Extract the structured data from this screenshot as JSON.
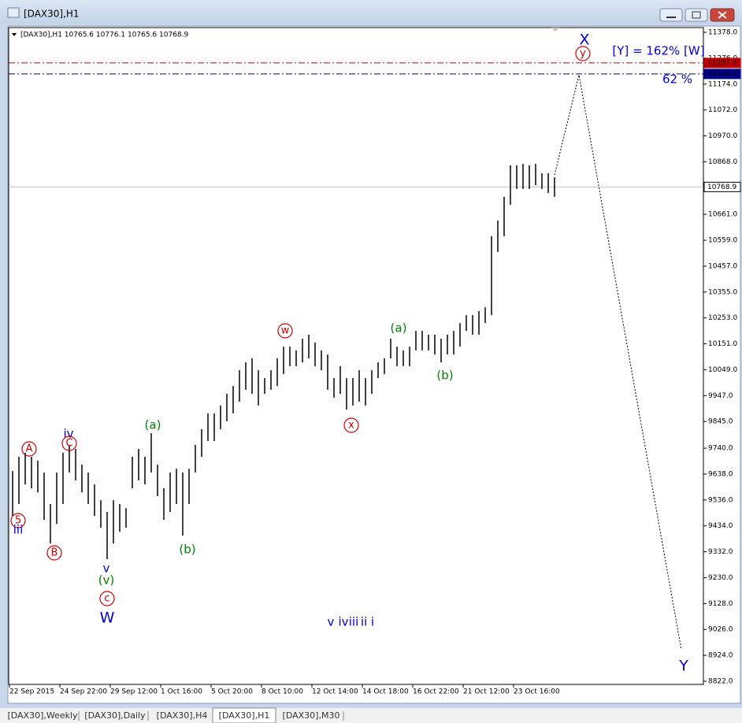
{
  "window_title": "[DAX30],H1",
  "tabs": [
    "[DAX30],Weekly",
    "[DAX30],Daily",
    "[DAX30],H4",
    "[DAX30],H1",
    "[DAX30],M30"
  ],
  "active_tab": 3,
  "chart_data": {
    "type": "ohlc",
    "title": "[DAX30],H1  10765.6 10776.1 10765.6 10768.9",
    "color": "#000000",
    "categories": [
      "22 Sep 2015",
      null,
      null,
      null,
      null,
      null,
      null,
      null,
      "24 Sep 22:00",
      null,
      null,
      null,
      null,
      null,
      null,
      null,
      "29 Sep 12:00",
      null,
      null,
      null,
      null,
      null,
      null,
      null,
      "1 Oct 16:00",
      null,
      null,
      null,
      null,
      null,
      null,
      null,
      "5 Oct 20:00",
      null,
      null,
      null,
      null,
      null,
      null,
      null,
      "8 Oct 10:00",
      null,
      null,
      null,
      null,
      null,
      null,
      null,
      "12 Oct 14:00",
      null,
      null,
      null,
      null,
      null,
      null,
      null,
      "14 Oct 18:00",
      null,
      null,
      null,
      null,
      null,
      null,
      null,
      "16 Oct 22:00",
      null,
      null,
      null,
      null,
      null,
      null,
      null,
      "21 Oct 12:00",
      null,
      null,
      null,
      null,
      null,
      null,
      null,
      "23 Oct 16:00",
      null,
      null,
      null,
      null,
      null,
      null
    ],
    "high": [
      9650,
      9706,
      9722,
      9706,
      9691,
      9644,
      9520,
      9644,
      9722,
      9753,
      9737,
      9675,
      9644,
      9597,
      9535,
      9489,
      9535,
      9520,
      9504,
      9706,
      9737,
      9706,
      9799,
      9675,
      9582,
      9644,
      9659,
      9644,
      9659,
      9753,
      9815,
      9877,
      9877,
      9908,
      9954,
      9985,
      10047,
      10078,
      10094,
      10047,
      10016,
      10047,
      10094,
      10140,
      10140,
      10125,
      10171,
      10187,
      10156,
      10125,
      10109,
      10016,
      10063,
      10016,
      10016,
      10047,
      10016,
      10047,
      10078,
      10094,
      10171,
      10140,
      10125,
      10140,
      10202,
      10202,
      10187,
      10187,
      10171,
      10187,
      10202,
      10233,
      10264,
      10264,
      10280,
      10295,
      10575,
      10637,
      10730,
      10854,
      10854,
      10860,
      10854,
      10860,
      10823,
      10823,
      10807
    ],
    "low": [
      9473,
      9520,
      9597,
      9582,
      9566,
      9458,
      9365,
      9442,
      9520,
      9644,
      9613,
      9566,
      9520,
      9473,
      9427,
      9303,
      9365,
      9411,
      9427,
      9582,
      9613,
      9597,
      9644,
      9551,
      9458,
      9489,
      9520,
      9396,
      9520,
      9644,
      9706,
      9768,
      9768,
      9815,
      9846,
      9877,
      9923,
      9970,
      9954,
      9908,
      9954,
      9970,
      9985,
      10032,
      10063,
      10063,
      10078,
      10094,
      10063,
      10047,
      9970,
      9939,
      9954,
      9892,
      9908,
      9923,
      9908,
      9954,
      10016,
      10032,
      10094,
      10063,
      10063,
      10063,
      10125,
      10125,
      10125,
      10109,
      10078,
      10109,
      10109,
      10140,
      10202,
      10187,
      10187,
      10233,
      10264,
      10513,
      10575,
      10699,
      10761,
      10761,
      10761,
      10776,
      10761,
      10745,
      10730
    ],
    "ylim": [
      8822,
      11378
    ],
    "yticks": [
      {
        "value": 11378,
        "label": "11378.0"
      },
      {
        "value": 11276,
        "label": "11276.0"
      },
      {
        "value": 11174,
        "label": "11174.0"
      },
      {
        "value": 11072,
        "label": "11072.0"
      },
      {
        "value": 10970,
        "label": "10970.0"
      },
      {
        "value": 10868,
        "label": "10868.0"
      },
      {
        "value": 10661,
        "label": "10661.0"
      },
      {
        "value": 10559,
        "label": "10559.0"
      },
      {
        "value": 10457,
        "label": "10457.0"
      },
      {
        "value": 10355,
        "label": "10355.0"
      },
      {
        "value": 10253,
        "label": "10253.0"
      },
      {
        "value": 10151,
        "label": "10151.0"
      },
      {
        "value": 10049,
        "label": "10049.0"
      },
      {
        "value": 9947,
        "label": "9947.0"
      },
      {
        "value": 9845,
        "label": "9845.0"
      },
      {
        "value": 9740,
        "label": "9740.0"
      },
      {
        "value": 9638,
        "label": "9638.0"
      },
      {
        "value": 9536,
        "label": "9536.0"
      },
      {
        "value": 9434,
        "label": "9434.0"
      },
      {
        "value": 9332,
        "label": "9332.0"
      },
      {
        "value": 9230,
        "label": "9230.0"
      },
      {
        "value": 9128,
        "label": "9128.0"
      },
      {
        "value": 9026,
        "label": "9026.0"
      },
      {
        "value": 8924,
        "label": "8924.0"
      },
      {
        "value": 8822,
        "label": "8822.0"
      }
    ],
    "levels": [
      {
        "value": 11257.3,
        "color": "#c00000",
        "style": "dash-dot"
      },
      {
        "value": {
          "value": 11214,
          "label": "11214.0"
        },
        "color": "#00008b",
        "style": "dash-dot"
      },
      {
        "value": 10768.9,
        "color": "#c0c0c0",
        "style": "solid"
      }
    ],
    "projection": {
      "values": [
        10816,
        11210,
        8946
      ],
      "color": "#000000"
    },
    "annotations": [
      {
        "text": "A",
        "color": "#cc0000",
        "circled": true
      },
      {
        "text": "5",
        "color": "#cc0000",
        "circled": true
      },
      {
        "text": "iii",
        "color": "#0000cc",
        "circled": false
      },
      {
        "text": "B",
        "color": "#cc0000",
        "circled": true
      },
      {
        "text": "iv",
        "color": "#0000cc",
        "circled": false
      },
      {
        "text": "C",
        "color": "#cc0000",
        "circled": true
      },
      {
        "text": "v",
        "color": "#0000cc",
        "circled": false
      },
      {
        "text": "(v)",
        "color": "#008000",
        "circled": false
      },
      {
        "text": "c",
        "color": "#cc0000",
        "circled": true
      },
      {
        "text": "W",
        "color": "#0000cc",
        "circled": false
      },
      {
        "text": "(a)",
        "color": "#008000",
        "circled": false
      },
      {
        "text": "(b)",
        "color": "#008000",
        "circled": false
      },
      {
        "text": "w",
        "color": "#cc0000",
        "circled": true
      },
      {
        "text": "x",
        "color": "#cc0000",
        "circled": true
      },
      {
        "text": "(a)",
        "color": "#008000",
        "circled": false
      },
      {
        "text": "(b)",
        "color": "#008000",
        "circled": false
      },
      {
        "text": "X",
        "color": "#0000cc",
        "circled": false
      },
      {
        "text": "y",
        "color": "#cc0000",
        "circled": true
      },
      {
        "text": "[Y] = 162% [W]",
        "color": "#0000cc",
        "circled": false
      },
      {
        "text": "62 %",
        "color": "#0000cc",
        "circled": false
      },
      {
        "text": "Y",
        "color": "#0000cc",
        "circled": false
      },
      {
        "text": "v",
        "color": "#0000cc",
        "circled": false
      },
      {
        "text": "iv",
        "color": "#0000cc",
        "circled": false
      },
      {
        "text": "iii",
        "color": "#0000cc",
        "circled": false
      },
      {
        "text": "ii",
        "color": "#0000cc",
        "circled": false
      },
      {
        "text": "i",
        "color": "#0000cc",
        "circled": false
      }
    ]
  }
}
